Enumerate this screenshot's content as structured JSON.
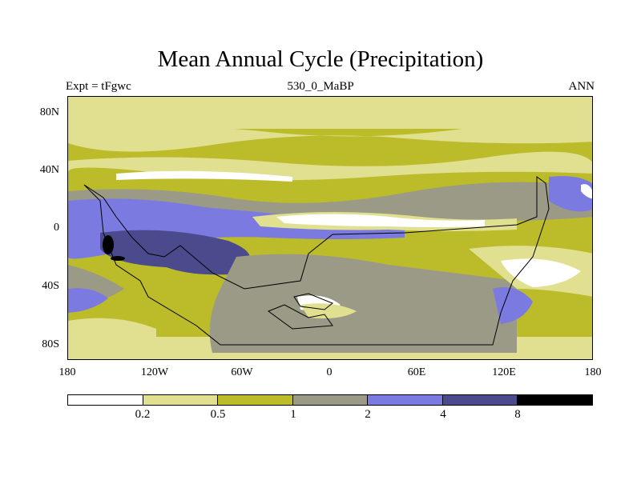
{
  "header": {
    "title": "Mean Annual Cycle (Precipitation)",
    "experiment": "Expt = tFgwc",
    "period": "530_0_MaBP",
    "season": "ANN"
  },
  "lat_labels": [
    "80N",
    "40N",
    "0",
    "40S",
    "80S"
  ],
  "lon_labels": [
    "180",
    "120W",
    "60W",
    "0",
    "60E",
    "120E",
    "180"
  ],
  "colorbar": {
    "labels": [
      "0.2",
      "0.5",
      "1",
      "2",
      "4",
      "8"
    ],
    "colors": [
      "#ffffff",
      "#e0e090",
      "#bcbc2a",
      "#9a9a86",
      "#7a7ae0",
      "#4a4a8c",
      "#000000"
    ]
  }
}
